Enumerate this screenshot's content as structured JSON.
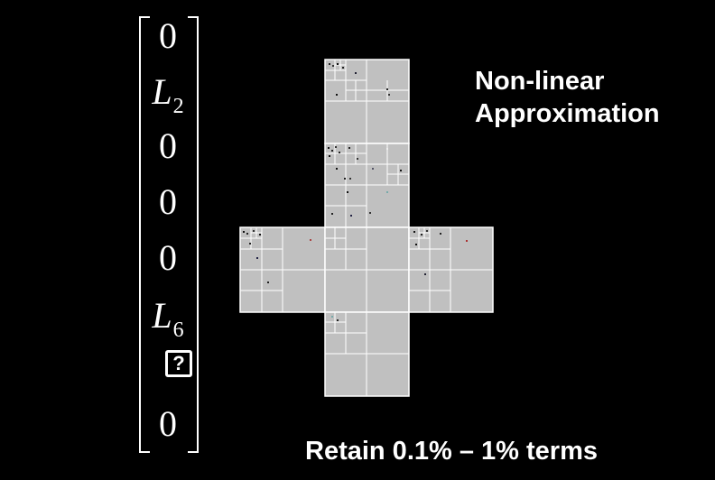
{
  "vector": {
    "entries": [
      {
        "text": "0"
      },
      {
        "text": "L",
        "sub": "2"
      },
      {
        "text": "0"
      },
      {
        "text": "0"
      },
      {
        "text": "0"
      },
      {
        "text": "L",
        "sub": "6"
      },
      {
        "text": "?",
        "boxed": true
      },
      {
        "text": "0"
      }
    ]
  },
  "heading": {
    "line1": "Non-linear",
    "line2": "Approximation"
  },
  "caption": "Retain 0.1% – 1% terms",
  "colors": {
    "background": "#000000",
    "face_fill": "#c0c0c0",
    "grid_line": "#ffffff",
    "text": "#ffffff"
  }
}
